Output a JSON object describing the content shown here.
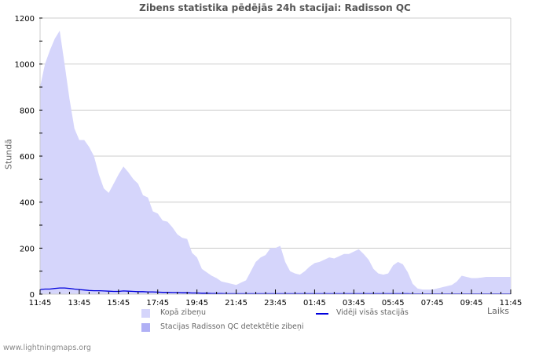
{
  "title": "Zibens statistika pēdējās 24h stacijai: Radisson QC",
  "footer": "www.lightningmaps.org",
  "chart_data": {
    "type": "area",
    "title": "Zibens statistika pēdējās 24h stacijai: Radisson QC",
    "xlabel": "Laiks",
    "ylabel": "Stundā",
    "ylim": [
      0,
      1200
    ],
    "yticks": [
      0,
      200,
      400,
      600,
      800,
      1000,
      1200
    ],
    "xticks": [
      "11:45",
      "13:45",
      "15:45",
      "17:45",
      "19:45",
      "21:45",
      "23:45",
      "01:45",
      "03:45",
      "05:45",
      "07:45",
      "09:45",
      "11:45"
    ],
    "grid": true,
    "legend_position": "bottom",
    "x": [
      "11:45",
      "12:00",
      "12:15",
      "12:30",
      "12:45",
      "13:00",
      "13:15",
      "13:30",
      "13:45",
      "14:00",
      "14:15",
      "14:30",
      "14:45",
      "15:00",
      "15:15",
      "15:30",
      "15:45",
      "16:00",
      "16:15",
      "16:30",
      "16:45",
      "17:00",
      "17:15",
      "17:30",
      "17:45",
      "18:00",
      "18:15",
      "18:30",
      "18:45",
      "19:00",
      "19:15",
      "19:30",
      "19:45",
      "20:00",
      "20:15",
      "20:30",
      "20:45",
      "21:00",
      "21:15",
      "21:30",
      "21:45",
      "22:00",
      "22:15",
      "22:30",
      "22:45",
      "23:00",
      "23:15",
      "23:30",
      "23:45",
      "00:00",
      "00:15",
      "00:30",
      "00:45",
      "01:00",
      "01:15",
      "01:30",
      "01:45",
      "02:00",
      "02:15",
      "02:30",
      "02:45",
      "03:00",
      "03:15",
      "03:30",
      "03:45",
      "04:00",
      "04:15",
      "04:30",
      "04:45",
      "05:00",
      "05:15",
      "05:30",
      "05:45",
      "06:00",
      "06:15",
      "06:30",
      "06:45",
      "07:00",
      "07:15",
      "07:30",
      "07:45",
      "08:00",
      "08:15",
      "08:30",
      "08:45",
      "09:00",
      "09:15",
      "09:30",
      "09:45",
      "10:00",
      "10:15",
      "10:30",
      "10:45",
      "11:00",
      "11:15",
      "11:30",
      "11:45"
    ],
    "series": [
      {
        "name": "Kopā zibeņu",
        "kind": "area",
        "color": "#d5d5fb",
        "values": [
          900,
          1000,
          1060,
          1110,
          1145,
          1000,
          850,
          720,
          670,
          670,
          640,
          600,
          520,
          460,
          440,
          480,
          520,
          555,
          530,
          500,
          480,
          430,
          420,
          360,
          350,
          320,
          315,
          290,
          260,
          245,
          240,
          180,
          160,
          110,
          95,
          80,
          70,
          55,
          50,
          45,
          40,
          50,
          60,
          100,
          140,
          160,
          170,
          200,
          200,
          210,
          140,
          100,
          90,
          85,
          100,
          120,
          135,
          140,
          150,
          160,
          155,
          165,
          175,
          175,
          185,
          195,
          175,
          150,
          110,
          90,
          85,
          90,
          125,
          140,
          130,
          95,
          45,
          25,
          20,
          20,
          20,
          25,
          30,
          35,
          40,
          55,
          80,
          75,
          70,
          70,
          72,
          75,
          75,
          75,
          75,
          75,
          75
        ]
      },
      {
        "name": "Stacijas Radisson QC detektētie zibeņi",
        "kind": "area",
        "color": "#b0b0f5",
        "values": [
          0,
          0,
          0,
          0,
          0,
          0,
          0,
          0,
          0,
          0,
          0,
          0,
          0,
          0,
          0,
          0,
          0,
          0,
          0,
          0,
          0,
          0,
          0,
          0,
          0,
          0,
          0,
          0,
          0,
          0,
          0,
          0,
          0,
          0,
          0,
          0,
          0,
          0,
          0,
          0,
          0,
          0,
          0,
          0,
          0,
          0,
          0,
          0,
          0,
          0,
          0,
          0,
          0,
          0,
          0,
          0,
          0,
          0,
          0,
          0,
          0,
          0,
          0,
          0,
          0,
          0,
          0,
          0,
          0,
          0,
          0,
          0,
          0,
          0,
          0,
          0,
          0,
          0,
          0,
          0,
          0,
          0,
          0,
          0,
          0,
          0,
          0,
          0,
          0,
          0,
          0,
          0,
          0,
          0,
          0,
          0,
          0
        ]
      },
      {
        "name": "Vidēji visās stacijās",
        "kind": "line",
        "color": "#0000dd",
        "values": [
          20,
          22,
          22,
          25,
          27,
          27,
          25,
          22,
          20,
          18,
          16,
          15,
          15,
          14,
          13,
          12,
          12,
          14,
          13,
          12,
          11,
          11,
          10,
          10,
          9,
          8,
          8,
          7,
          7,
          6,
          6,
          5,
          5,
          4,
          4,
          3,
          3,
          3,
          2,
          2,
          2,
          2,
          2,
          2,
          2,
          2,
          2,
          2,
          2,
          2,
          2,
          2,
          2,
          2,
          2,
          2,
          2,
          2,
          2,
          2,
          2,
          2,
          2,
          2,
          2,
          2,
          2,
          2,
          2,
          2,
          2,
          2,
          2,
          2,
          2,
          2,
          1,
          1,
          1,
          1,
          1,
          1,
          1,
          1,
          1,
          1,
          1,
          1,
          1,
          1,
          1,
          1,
          1,
          1,
          1,
          1,
          1
        ]
      }
    ]
  },
  "axis": {
    "ylabel": "Stundā",
    "xlabel": "Laiks",
    "yticks": [
      "0",
      "200",
      "400",
      "600",
      "800",
      "1000",
      "1200"
    ],
    "xticks": [
      "11:45",
      "13:45",
      "15:45",
      "17:45",
      "19:45",
      "21:45",
      "23:45",
      "01:45",
      "03:45",
      "05:45",
      "07:45",
      "09:45",
      "11:45"
    ]
  },
  "legend": {
    "total": "Kopā zibeņu",
    "station": "Stacijas Radisson QC detektētie zibeņi",
    "average": "Vidēji visās stacijās"
  },
  "colors": {
    "total_fill": "#d5d5fb",
    "station_fill": "#b0b0f5",
    "average_line": "#0000dd",
    "grid": "#cccccc",
    "axis": "#cccccc"
  }
}
